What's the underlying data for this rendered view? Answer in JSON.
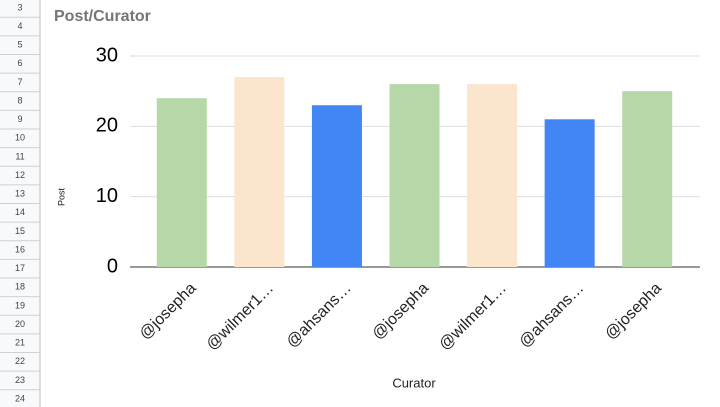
{
  "sheet": {
    "row_numbers": [
      3,
      4,
      5,
      6,
      7,
      8,
      9,
      10,
      11,
      12,
      13,
      14,
      15,
      16,
      17,
      18,
      19,
      20,
      21,
      22,
      23,
      24
    ]
  },
  "chart_data": {
    "type": "bar",
    "title": "Post/Curator",
    "x_label": "Curator",
    "y_label": "Post",
    "categories": [
      "@josepha",
      "@wilmer1…",
      "@ahsans…",
      "@josepha",
      "@wilmer1…",
      "@ahsans…",
      "@josepha"
    ],
    "values": [
      24,
      27,
      23,
      26,
      26,
      21,
      25
    ],
    "colors": [
      "#b6d7a8",
      "#fce5cd",
      "#4285f4",
      "#b6d7a8",
      "#fce5cd",
      "#4285f4",
      "#b6d7a8"
    ],
    "ylim": [
      0,
      30
    ],
    "yticks": [
      0,
      10,
      20,
      30
    ],
    "grid": true
  }
}
